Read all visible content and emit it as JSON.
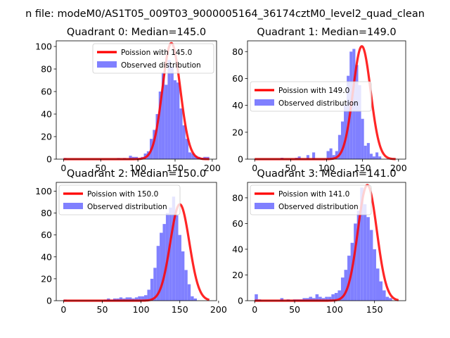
{
  "suptitle": "n file: modeM0/AS1T05_009T03_9000005164_36174cztM0_level2_quad_clean",
  "colors": {
    "hist": "#8080ff",
    "fit": "#ff0000",
    "axis": "#000000",
    "legend_bg": "#ffffff",
    "legend_edge": "#cccccc"
  },
  "chart_data": [
    {
      "type": "bar",
      "title": "Quadrant 0: Median=145.0",
      "xlim": [
        -9.8,
        205.8
      ],
      "ylim": [
        0,
        105
      ],
      "xticks": [
        0,
        50,
        100,
        150,
        200
      ],
      "yticks": [
        0,
        20,
        40,
        60,
        80,
        100
      ],
      "legend": {
        "placement": "top-right",
        "entries": [
          "Poission with 145.0",
          "Observed distribution"
        ]
      },
      "hist": {
        "start": 0,
        "bin_width": 4,
        "counts": [
          1,
          0,
          0,
          0,
          0,
          0,
          0,
          0,
          0,
          0,
          0,
          0,
          0,
          0,
          0,
          0,
          0,
          0,
          1,
          0,
          1,
          0,
          3,
          2,
          2,
          1,
          2,
          5,
          7,
          18,
          26,
          40,
          60,
          77,
          66,
          88,
          82,
          70,
          68,
          45,
          30,
          18,
          6,
          5,
          3,
          2,
          1,
          2,
          2
        ]
      },
      "fit": {
        "name": "Poission with 145.0",
        "mean": 145.0,
        "peak": 103,
        "sigma": 12.04,
        "x_range": [
          0,
          196
        ]
      }
    },
    {
      "type": "bar",
      "title": "Quadrant 1: Median=149.0",
      "xlim": [
        -10.0,
        210.0
      ],
      "ylim": [
        0,
        88
      ],
      "xticks": [
        0,
        50,
        100,
        150,
        200
      ],
      "yticks": [
        0,
        20,
        40,
        60,
        80
      ],
      "legend": {
        "placement": "center-left",
        "entries": [
          "Poission with 149.0",
          "Observed distribution"
        ]
      },
      "hist": {
        "start": 0,
        "bin_width": 4,
        "counts": [
          0,
          0,
          0,
          0,
          0,
          0,
          0,
          0,
          0,
          1,
          0,
          0,
          0,
          0,
          1,
          2,
          0,
          0,
          3,
          0,
          5,
          0,
          0,
          0,
          0,
          6,
          8,
          3,
          6,
          18,
          28,
          40,
          62,
          80,
          82,
          70,
          55,
          30,
          10,
          12,
          4,
          2,
          5,
          2,
          0,
          0,
          0,
          0,
          0,
          0
        ]
      },
      "fit": {
        "name": "Poission with 149.0",
        "mean": 149.0,
        "peak": 84,
        "sigma": 12.2,
        "x_range": [
          0,
          196
        ]
      }
    },
    {
      "type": "bar",
      "title": "Quadrant 2: Median=150.0",
      "xlim": [
        -9.4,
        197.4
      ],
      "ylim": [
        0,
        108
      ],
      "xticks": [
        0,
        50,
        100,
        150,
        200
      ],
      "yticks": [
        0,
        20,
        40,
        60,
        80,
        100
      ],
      "legend": {
        "placement": "top-left",
        "entries": [
          "Poission with 150.0",
          "Observed distribution"
        ]
      },
      "hist": {
        "start": 0,
        "bin_width": 4,
        "counts": [
          1,
          0,
          0,
          0,
          0,
          0,
          0,
          0,
          0,
          0,
          0,
          0,
          0,
          1,
          2,
          1,
          2,
          2,
          3,
          2,
          3,
          3,
          2,
          3,
          4,
          4,
          5,
          10,
          20,
          30,
          50,
          62,
          70,
          80,
          85,
          95,
          78,
          60,
          45,
          28,
          15,
          4,
          2,
          0,
          0,
          0,
          0
        ]
      },
      "fit": {
        "name": "Poission with 150.0",
        "mean": 150.0,
        "peak": 88,
        "sigma": 12.25,
        "x_range": [
          0,
          188
        ]
      }
    },
    {
      "type": "bar",
      "title": "Quadrant 3: Median=141.0",
      "xlim": [
        -9.0,
        189.0
      ],
      "ylim": [
        0,
        92
      ],
      "xticks": [
        0,
        50,
        100,
        150
      ],
      "yticks": [
        0,
        20,
        40,
        60,
        80
      ],
      "legend": {
        "placement": "top-left",
        "entries": [
          "Poission with 141.0",
          "Observed distribution"
        ]
      },
      "hist": {
        "start": 0,
        "bin_width": 4,
        "counts": [
          5,
          1,
          0,
          0,
          0,
          0,
          0,
          0,
          2,
          0,
          1,
          0,
          1,
          1,
          1,
          2,
          2,
          3,
          2,
          5,
          3,
          2,
          3,
          3,
          5,
          6,
          8,
          18,
          24,
          35,
          45,
          60,
          70,
          88,
          75,
          65,
          55,
          40,
          25,
          15,
          8,
          3,
          2,
          0,
          0
        ]
      },
      "fit": {
        "name": "Poission with 141.0",
        "mean": 141.0,
        "peak": 90,
        "sigma": 11.87,
        "x_range": [
          0,
          180
        ]
      }
    }
  ]
}
